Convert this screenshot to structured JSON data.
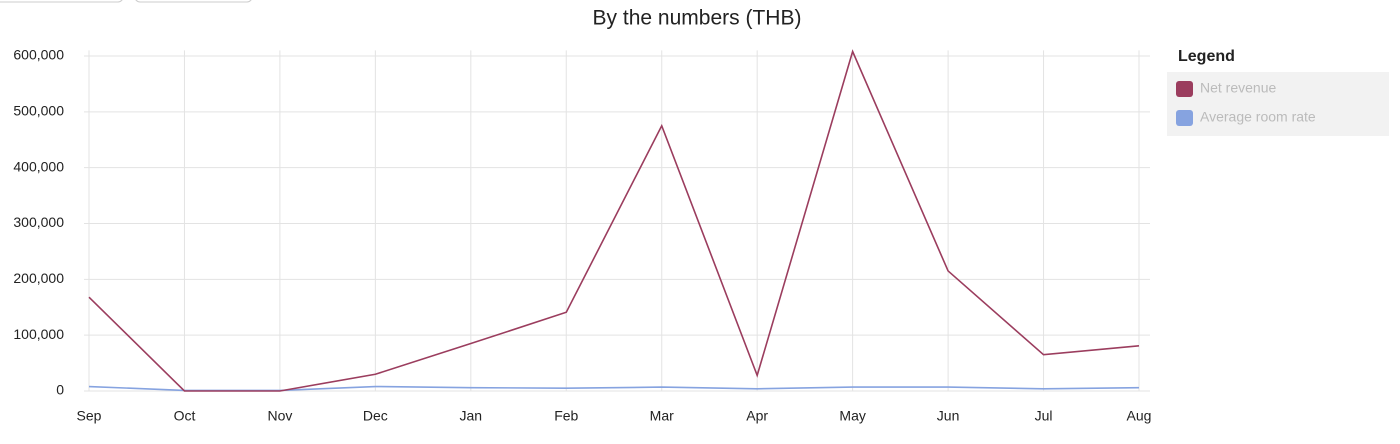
{
  "chart_data": {
    "type": "line",
    "title": "By the numbers (THB)",
    "categories": [
      "Sep",
      "Oct",
      "Nov",
      "Dec",
      "Jan",
      "Feb",
      "Mar",
      "Apr",
      "May",
      "Jun",
      "Jul",
      "Aug"
    ],
    "series": [
      {
        "name": "Net revenue",
        "color": "#9b3d5e",
        "values": [
          168000,
          0,
          0,
          30000,
          85000,
          141000,
          475000,
          28000,
          608000,
          215000,
          65000,
          81000
        ]
      },
      {
        "name": "Average room rate",
        "color": "#86a3e0",
        "values": [
          8000,
          1000,
          1000,
          8000,
          6000,
          5000,
          7000,
          4000,
          7000,
          7000,
          4000,
          6000
        ]
      }
    ],
    "ylim": [
      0,
      610000
    ],
    "yticks": [
      0,
      {
        "value": 100000,
        "label": "100,000"
      },
      {
        "value": 200000,
        "label": "200,000"
      },
      {
        "value": 300000,
        "label": "300,000"
      },
      {
        "value": 400000,
        "label": "400,000"
      },
      {
        "value": 500000,
        "label": "500,000"
      },
      {
        "value": 600000,
        "label": "600,000"
      }
    ],
    "grid": true,
    "legend": {
      "title": "Legend",
      "position": "right"
    }
  }
}
